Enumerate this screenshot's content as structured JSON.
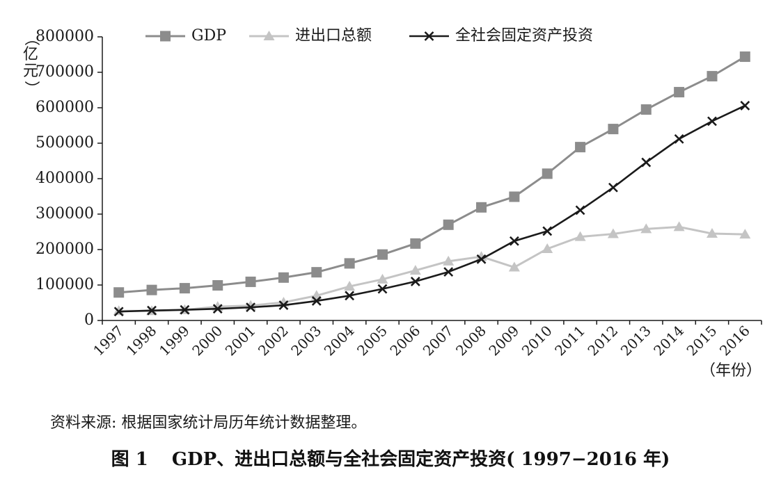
{
  "chart_data": {
    "type": "line",
    "title": "",
    "ylabel": "（亿元）",
    "xlabel": "（年份）",
    "ylim": [
      0,
      800000
    ],
    "yticks": [
      0,
      100000,
      200000,
      300000,
      400000,
      500000,
      600000,
      700000,
      800000
    ],
    "x": [
      "1997",
      "1998",
      "1999",
      "2000",
      "2001",
      "2002",
      "2003",
      "2004",
      "2005",
      "2006",
      "2007",
      "2008",
      "2009",
      "2010",
      "2011",
      "2012",
      "2013",
      "2014",
      "2015",
      "2016"
    ],
    "series": [
      {
        "name": "GDP",
        "marker": "square",
        "color": "#8c8c8c",
        "values": [
          79000,
          86000,
          91000,
          99000,
          109000,
          121000,
          136000,
          161000,
          186000,
          217000,
          270000,
          319000,
          349000,
          414000,
          489000,
          540000,
          595000,
          644000,
          689000,
          744000
        ]
      },
      {
        "name": "进出口总额",
        "marker": "triangle",
        "color": "#c4c4c4",
        "values": [
          27000,
          27000,
          30000,
          39000,
          42000,
          51000,
          70000,
          96000,
          116000,
          141000,
          167000,
          180000,
          150000,
          202000,
          236000,
          244000,
          258000,
          264000,
          245000,
          243000
        ]
      },
      {
        "name": "全社会固定资产投资",
        "marker": "x",
        "color": "#1a1a1a",
        "values": [
          25000,
          28000,
          30000,
          33000,
          37000,
          43000,
          55000,
          70000,
          89000,
          110000,
          137000,
          173000,
          224000,
          252000,
          311000,
          375000,
          446000,
          512000,
          562000,
          606000
        ]
      }
    ],
    "legend_position": "top",
    "grid": false
  },
  "source_note": "资料来源: 根据国家统计局历年统计数据整理。",
  "caption": {
    "figure_number": "图 1",
    "text": "GDP、进出口总额与全社会固定资产投资( 1997−2016 年)"
  }
}
